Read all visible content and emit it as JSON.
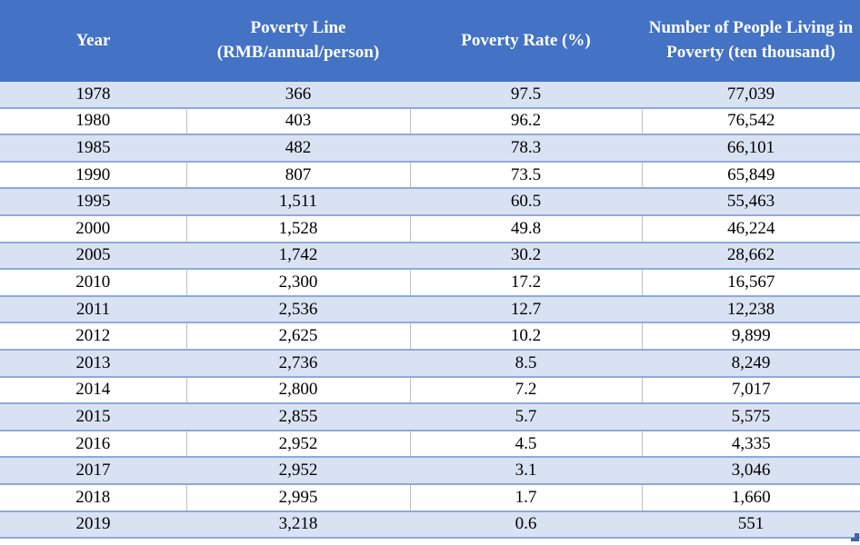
{
  "colors": {
    "header_bg": "#4472C4",
    "header_text": "#ffffff",
    "band_row_bg": "#D9E2F3",
    "white_row_bg": "#ffffff",
    "row_border": "#8EAADB",
    "column_divider": "#BFBFBF",
    "resize_handle": "#4262AE"
  },
  "chart_data": {
    "type": "table",
    "title": "",
    "columns": [
      "Year",
      "Poverty Line (RMB/annual/person)",
      "Poverty Rate (%)",
      "Number of People Living in Poverty (ten thousand)"
    ],
    "categories": [
      "1978",
      "1980",
      "1985",
      "1990",
      "1995",
      "2000",
      "2005",
      "2010",
      "2011",
      "2012",
      "2013",
      "2014",
      "2015",
      "2016",
      "2017",
      "2018",
      "2019"
    ],
    "series": [
      {
        "name": "Poverty Line (RMB/annual/person)",
        "values": [
          366,
          403,
          482,
          807,
          1511,
          1528,
          1742,
          2300,
          2536,
          2625,
          2736,
          2800,
          2855,
          2952,
          2952,
          2995,
          3218
        ]
      },
      {
        "name": "Poverty Rate (%)",
        "values": [
          97.5,
          96.2,
          78.3,
          73.5,
          60.5,
          49.8,
          30.2,
          17.2,
          12.7,
          10.2,
          8.5,
          7.2,
          5.7,
          4.5,
          3.1,
          1.7,
          0.6
        ]
      },
      {
        "name": "Number of People Living in Poverty (ten thousand)",
        "values": [
          77039,
          76542,
          66101,
          65849,
          55463,
          46224,
          28662,
          16567,
          12238,
          9899,
          8249,
          7017,
          5575,
          4335,
          3046,
          1660,
          551
        ]
      }
    ],
    "display_rows": [
      [
        "1978",
        "366",
        "97.5",
        "77,039"
      ],
      [
        "1980",
        "403",
        "96.2",
        "76,542"
      ],
      [
        "1985",
        "482",
        "78.3",
        "66,101"
      ],
      [
        "1990",
        "807",
        "73.5",
        "65,849"
      ],
      [
        "1995",
        "1,511",
        "60.5",
        "55,463"
      ],
      [
        "2000",
        "1,528",
        "49.8",
        "46,224"
      ],
      [
        "2005",
        "1,742",
        "30.2",
        "28,662"
      ],
      [
        "2010",
        "2,300",
        "17.2",
        "16,567"
      ],
      [
        "2011",
        "2,536",
        "12.7",
        "12,238"
      ],
      [
        "2012",
        "2,625",
        "10.2",
        "9,899"
      ],
      [
        "2013",
        "2,736",
        "8.5",
        "8,249"
      ],
      [
        "2014",
        "2,800",
        "7.2",
        "7,017"
      ],
      [
        "2015",
        "2,855",
        "5.7",
        "5,575"
      ],
      [
        "2016",
        "2,952",
        "4.5",
        "4,335"
      ],
      [
        "2017",
        "2,952",
        "3.1",
        "3,046"
      ],
      [
        "2018",
        "2,995",
        "1.7",
        "1,660"
      ],
      [
        "2019",
        "3,218",
        "0.6",
        "551"
      ]
    ],
    "layout": {
      "header_style": "solid-blue",
      "row_banding": true,
      "grid": "horizontal-blue, vertical-gray-on-white-rows"
    }
  }
}
